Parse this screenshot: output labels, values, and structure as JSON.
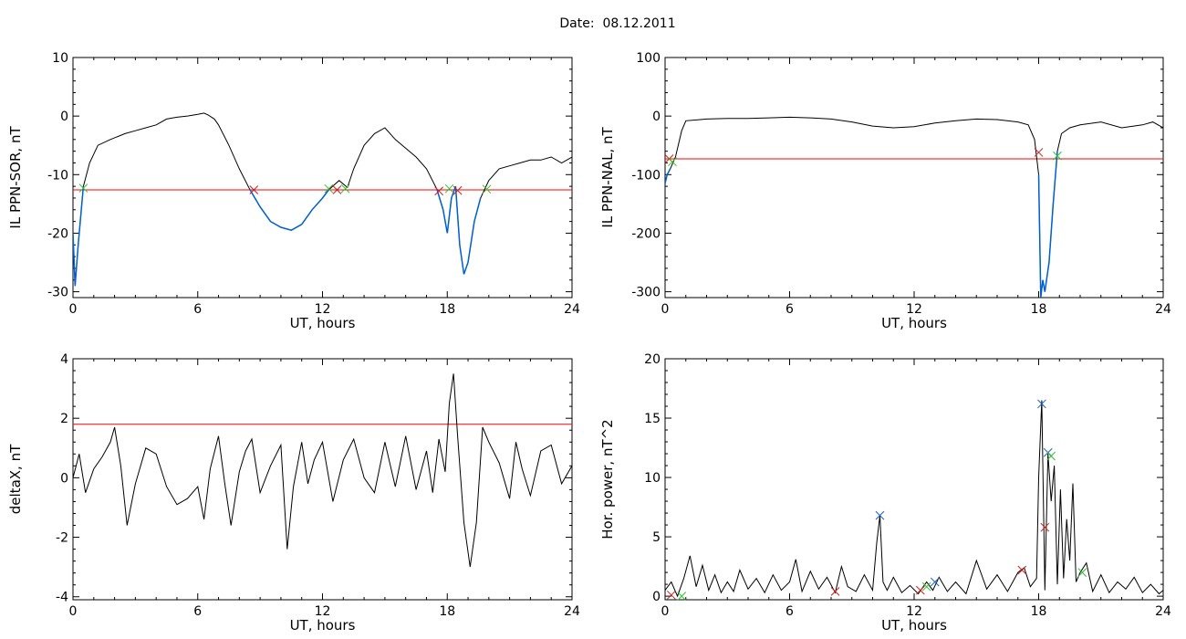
{
  "header": {
    "date_label": "Date:",
    "date_value": "08.12.2011"
  },
  "colors": {
    "trace": "#000000",
    "threshold": "#ff0000",
    "highlight": "#0060d0",
    "marker_red": "#cc2020",
    "marker_green": "#30c030",
    "marker_blue": "#2060c0"
  },
  "chart_data": [
    {
      "type": "line",
      "xlabel": "UT, hours",
      "ylabel": "IL PPN-SOR, nT",
      "xlim": [
        0,
        24
      ],
      "ylim": [
        -31,
        10
      ],
      "xticks": [
        0,
        6,
        12,
        18,
        24
      ],
      "yticks": [
        10,
        0,
        -10,
        -20,
        -30
      ],
      "threshold": -12.6,
      "series": [
        {
          "x": [
            0,
            0.1,
            0.25,
            0.5,
            0.8,
            1.2,
            1.8,
            2.5,
            3,
            3.5,
            4,
            4.5,
            5,
            5.5,
            6,
            6.3,
            6.5,
            6.8,
            7,
            7.5,
            8,
            8.5,
            9,
            9.5,
            10,
            10.5,
            11,
            11.5,
            12,
            12.3,
            12.8,
            13.2,
            13.5,
            14,
            14.5,
            15,
            15.5,
            16,
            16.5,
            17,
            17.5,
            17.8,
            18,
            18.2,
            18.4,
            18.6,
            18.8,
            19,
            19.3,
            19.6,
            20,
            20.5,
            21,
            21.5,
            22,
            22.5,
            23,
            23.5,
            24
          ],
          "y": [
            -20,
            -29,
            -22,
            -12,
            -8,
            -5,
            -4,
            -3,
            -2.5,
            -2,
            -1.5,
            -0.5,
            -0.2,
            0,
            0.3,
            0.5,
            0.2,
            -0.5,
            -1.5,
            -5,
            -9,
            -12.5,
            -15.5,
            -18,
            -19,
            -19.5,
            -18.5,
            -16,
            -14,
            -12.6,
            -11,
            -12.2,
            -9,
            -5,
            -3,
            -2,
            -4,
            -5.5,
            -7,
            -9,
            -12.5,
            -16,
            -20,
            -14,
            -12,
            -22,
            -27,
            -25,
            -18,
            -14,
            -11,
            -9,
            -8.5,
            -8,
            -7.5,
            -7.5,
            -7,
            -8,
            -7
          ]
        }
      ],
      "highlight_ranges": [
        [
          0,
          0.5
        ],
        [
          8.5,
          12.3
        ],
        [
          17.5,
          19.8
        ]
      ],
      "markers": [
        {
          "x": 0.5,
          "y": -12.3,
          "color": "green"
        },
        {
          "x": 8.7,
          "y": -12.6,
          "color": "red"
        },
        {
          "x": 12.3,
          "y": -12.4,
          "color": "green"
        },
        {
          "x": 12.7,
          "y": -12.6,
          "color": "red"
        },
        {
          "x": 13.1,
          "y": -12.4,
          "color": "green"
        },
        {
          "x": 17.6,
          "y": -12.8,
          "color": "red"
        },
        {
          "x": 18.1,
          "y": -12.4,
          "color": "green"
        },
        {
          "x": 18.5,
          "y": -12.7,
          "color": "red"
        },
        {
          "x": 19.9,
          "y": -12.5,
          "color": "green"
        }
      ]
    },
    {
      "type": "line",
      "xlabel": "UT, hours",
      "ylabel": "IL PPN-NAL, nT",
      "xlim": [
        0,
        24
      ],
      "ylim": [
        -310,
        100
      ],
      "xticks": [
        0,
        6,
        12,
        18,
        24
      ],
      "yticks": [
        100,
        0,
        -100,
        -200,
        -300
      ],
      "threshold": -73,
      "series": [
        {
          "x": [
            0,
            0.1,
            0.25,
            0.5,
            0.8,
            1,
            2,
            3,
            4,
            5,
            6,
            7,
            8,
            9,
            10,
            11,
            12,
            13,
            14,
            15,
            16,
            17,
            17.5,
            17.8,
            18,
            18.1,
            18.2,
            18.3,
            18.5,
            18.7,
            18.9,
            19.1,
            19.5,
            20,
            21,
            22,
            23,
            23.5,
            24
          ],
          "y": [
            -115,
            -100,
            -90,
            -70,
            -25,
            -8,
            -5,
            -4,
            -4,
            -3,
            -2,
            -3,
            -5,
            -10,
            -17,
            -20,
            -18,
            -12,
            -8,
            -5,
            -6,
            -10,
            -15,
            -40,
            -100,
            -310,
            -280,
            -300,
            -250,
            -150,
            -60,
            -30,
            -20,
            -15,
            -10,
            -20,
            -15,
            -10,
            -20
          ]
        }
      ],
      "highlight_ranges": [
        [
          0,
          0.25
        ],
        [
          18,
          18.9
        ]
      ],
      "markers": [
        {
          "x": 0.2,
          "y": -73,
          "color": "red"
        },
        {
          "x": 0.35,
          "y": -78,
          "color": "green"
        },
        {
          "x": 18,
          "y": -62,
          "color": "red"
        },
        {
          "x": 18.9,
          "y": -68,
          "color": "green"
        }
      ]
    },
    {
      "type": "line",
      "xlabel": "UT, hours",
      "ylabel": "deltaX, nT",
      "xlim": [
        0,
        24
      ],
      "ylim": [
        -4.1,
        4
      ],
      "xticks": [
        0,
        6,
        12,
        18,
        24
      ],
      "yticks": [
        4,
        2,
        0,
        -2,
        -4
      ],
      "threshold": 1.8,
      "series": [
        {
          "x": [
            0,
            0.3,
            0.6,
            1,
            1.4,
            1.8,
            2,
            2.3,
            2.6,
            3,
            3.5,
            4,
            4.5,
            5,
            5.5,
            6,
            6.3,
            6.6,
            7,
            7.3,
            7.6,
            8,
            8.3,
            8.6,
            9,
            9.5,
            10,
            10.3,
            10.6,
            11,
            11.3,
            11.6,
            12,
            12.5,
            13,
            13.5,
            14,
            14.5,
            15,
            15.5,
            16,
            16.5,
            17,
            17.3,
            17.6,
            17.9,
            18.1,
            18.3,
            18.5,
            18.8,
            19.1,
            19.4,
            19.7,
            20,
            20.5,
            21,
            21.3,
            21.6,
            22,
            22.5,
            23,
            23.5,
            24
          ],
          "y": [
            0,
            0.8,
            -0.5,
            0.3,
            0.7,
            1.2,
            1.7,
            0.4,
            -1.6,
            -0.2,
            1,
            0.8,
            -0.3,
            -0.9,
            -0.7,
            -0.3,
            -1.4,
            0.3,
            1.4,
            -0.2,
            -1.6,
            0.2,
            0.9,
            1.3,
            -0.5,
            0.4,
            1.1,
            -2.4,
            -0.3,
            1.2,
            -0.2,
            0.6,
            1.2,
            -0.8,
            0.6,
            1.3,
            0,
            -0.5,
            1.2,
            -0.3,
            1.4,
            -0.4,
            0.9,
            -0.5,
            1.3,
            0.2,
            2.5,
            3.5,
            1.4,
            -1.5,
            -3,
            -1.5,
            1.7,
            1.2,
            0.5,
            -0.7,
            1.2,
            0.3,
            -0.6,
            0.9,
            1.1,
            -0.2,
            0.4
          ]
        }
      ],
      "highlight_ranges": [],
      "markers": []
    },
    {
      "type": "line",
      "xlabel": "UT, hours",
      "ylabel": "Hor. power, nT^2",
      "xlim": [
        0,
        24
      ],
      "ylim": [
        -0.3,
        20
      ],
      "xticks": [
        0,
        6,
        12,
        18,
        24
      ],
      "yticks": [
        20,
        15,
        10,
        5,
        0
      ],
      "threshold": null,
      "series": [
        {
          "x": [
            0,
            0.3,
            0.6,
            0.9,
            1.2,
            1.5,
            1.8,
            2.1,
            2.4,
            2.7,
            3,
            3.3,
            3.6,
            4,
            4.4,
            4.8,
            5.2,
            5.6,
            6,
            6.3,
            6.6,
            7,
            7.4,
            7.8,
            8.2,
            8.5,
            8.8,
            9.2,
            9.6,
            10,
            10.2,
            10.35,
            10.5,
            10.7,
            11,
            11.4,
            11.8,
            12.2,
            12.6,
            12.9,
            13.2,
            13.6,
            14,
            14.5,
            15,
            15.5,
            16,
            16.5,
            17,
            17.3,
            17.6,
            17.9,
            18,
            18.15,
            18.3,
            18.45,
            18.6,
            18.75,
            18.9,
            19.05,
            19.2,
            19.35,
            19.5,
            19.65,
            19.8,
            20,
            20.3,
            20.6,
            21,
            21.4,
            21.8,
            22.2,
            22.6,
            23,
            23.4,
            23.8,
            24
          ],
          "y": [
            0.5,
            1.2,
            0,
            1.5,
            3.4,
            0.8,
            2.6,
            0.5,
            1.8,
            0.3,
            1.2,
            0.4,
            2.2,
            0.6,
            1.5,
            0.3,
            1.8,
            0.5,
            1.2,
            3.1,
            0.4,
            2.1,
            0.6,
            1.6,
            0.3,
            2.5,
            0.8,
            0.4,
            1.8,
            0.5,
            4.5,
            6.8,
            1.2,
            0.5,
            1.6,
            0.3,
            0.9,
            0.2,
            1.2,
            0.5,
            1.6,
            0.4,
            1.2,
            0.2,
            3,
            0.6,
            1.8,
            0.4,
            2,
            2.4,
            0.8,
            1.5,
            10,
            16.5,
            0.5,
            12,
            8,
            11,
            1,
            9,
            1.5,
            6.5,
            3,
            9.5,
            1.2,
            2,
            2.8,
            0.4,
            1.8,
            0.3,
            1.2,
            0.6,
            1.6,
            0.3,
            1,
            0.2,
            0.5
          ]
        }
      ],
      "highlight_ranges": [],
      "markers": [
        {
          "x": 0.3,
          "y": 0.1,
          "color": "red"
        },
        {
          "x": 0.8,
          "y": 0,
          "color": "green"
        },
        {
          "x": 8.2,
          "y": 0.4,
          "color": "red"
        },
        {
          "x": 10.35,
          "y": 6.8,
          "color": "blue"
        },
        {
          "x": 12.3,
          "y": 0.5,
          "color": "red"
        },
        {
          "x": 12.6,
          "y": 0.8,
          "color": "green"
        },
        {
          "x": 13,
          "y": 1.2,
          "color": "blue"
        },
        {
          "x": 17.2,
          "y": 2.2,
          "color": "red"
        },
        {
          "x": 18.15,
          "y": 16.2,
          "color": "blue"
        },
        {
          "x": 18.3,
          "y": 5.8,
          "color": "red"
        },
        {
          "x": 18.45,
          "y": 12.1,
          "color": "blue"
        },
        {
          "x": 18.6,
          "y": 11.8,
          "color": "green"
        },
        {
          "x": 20.1,
          "y": 2,
          "color": "green"
        }
      ]
    }
  ]
}
